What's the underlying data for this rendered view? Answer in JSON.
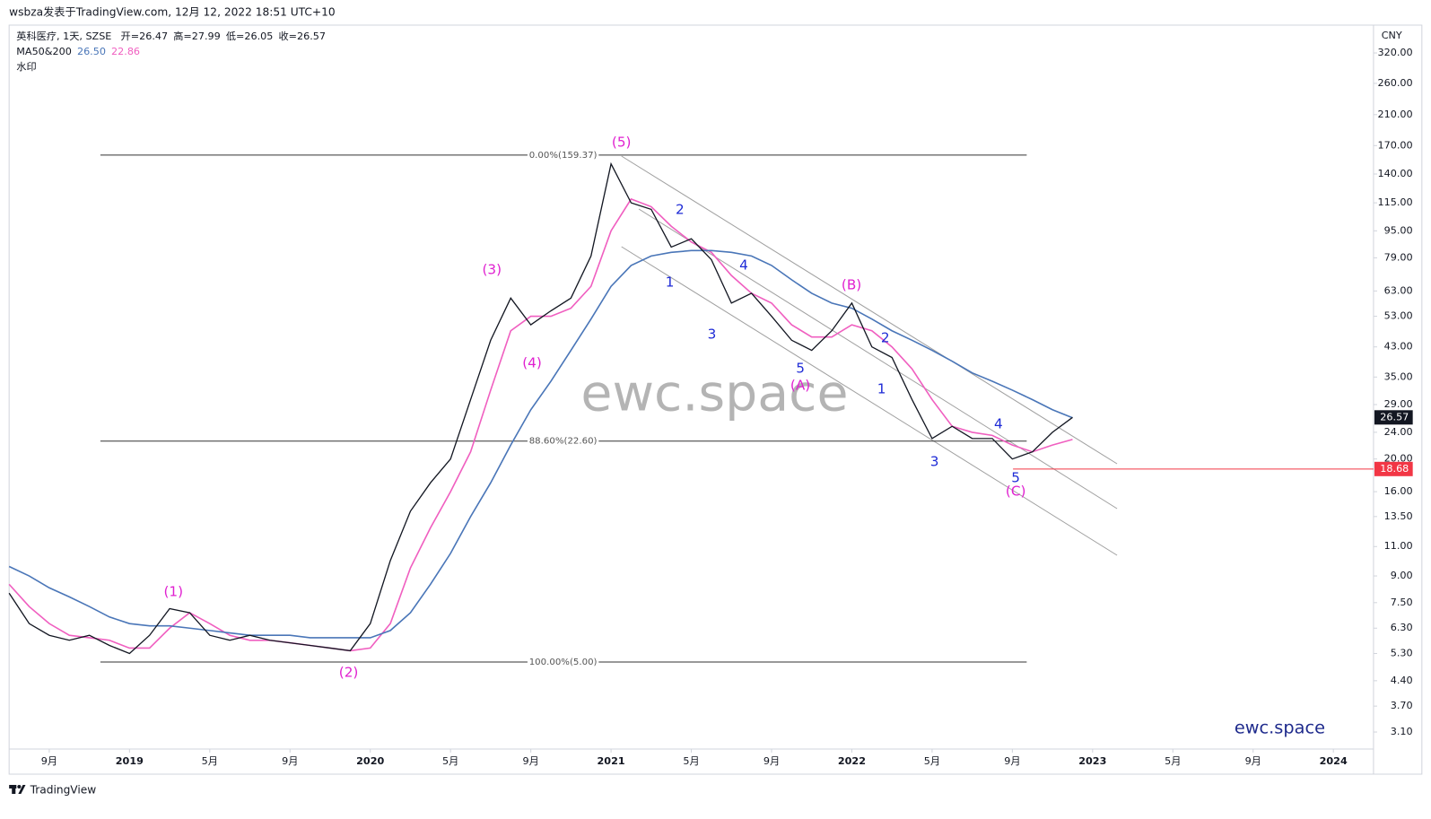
{
  "header": {
    "byline": "wsbza发表于TradingView.com, 12月 12, 2022 18:51 UTC+10",
    "symbol": "英科医疗, 1天, SZSE",
    "ohlc": [
      {
        "label": "开=",
        "value": 26.47
      },
      {
        "label": "高=",
        "value": 27.99
      },
      {
        "label": "低=",
        "value": 26.05
      },
      {
        "label": "收=",
        "value": 26.57
      }
    ],
    "indicator": "MA50&200",
    "indicator_values": [
      {
        "value": 26.5,
        "label": "26.50"
      },
      {
        "value": 22.86,
        "label": "22.86"
      }
    ],
    "watermark_label": "水印"
  },
  "footer": {
    "brand": "TradingView"
  },
  "chart_data": {
    "type": "line",
    "currency": "CNY",
    "log_scale": true,
    "watermark": "ewc.space",
    "signature": "ewc.space",
    "x": [
      "2018-07",
      "2018-08",
      "2018-09",
      "2018-10",
      "2018-11",
      "2018-12",
      "2019-01",
      "2019-02",
      "2019-03",
      "2019-04",
      "2019-05",
      "2019-06",
      "2019-07",
      "2019-08",
      "2019-09",
      "2019-10",
      "2019-11",
      "2019-12",
      "2020-01",
      "2020-02",
      "2020-03",
      "2020-04",
      "2020-05",
      "2020-06",
      "2020-07",
      "2020-08",
      "2020-09",
      "2020-10",
      "2020-11",
      "2020-12",
      "2021-01",
      "2021-02",
      "2021-03",
      "2021-04",
      "2021-05",
      "2021-06",
      "2021-07",
      "2021-08",
      "2021-09",
      "2021-10",
      "2021-11",
      "2021-12",
      "2022-01",
      "2022-02",
      "2022-03",
      "2022-04",
      "2022-05",
      "2022-06",
      "2022-07",
      "2022-08",
      "2022-09",
      "2022-10",
      "2022-11",
      "2022-12"
    ],
    "series": [
      {
        "color": "#131722",
        "values": [
          8.0,
          6.5,
          6.0,
          5.8,
          6.0,
          5.6,
          5.3,
          6.0,
          7.2,
          7.0,
          6.0,
          5.8,
          6.0,
          5.8,
          5.7,
          5.6,
          5.5,
          5.4,
          6.5,
          10.0,
          14.0,
          17.0,
          20.0,
          30.0,
          45.0,
          60.0,
          50.0,
          55.0,
          60.0,
          80.0,
          150.0,
          115.0,
          110.0,
          85.0,
          90.0,
          78.0,
          58.0,
          62.0,
          53.0,
          45.0,
          42.0,
          48.0,
          58.0,
          43.0,
          40.0,
          30.0,
          23.0,
          25.0,
          23.0,
          23.0,
          20.0,
          21.0,
          24.0,
          26.57
        ]
      },
      {
        "color": "#4a76b8",
        "values": [
          9.6,
          9.0,
          8.3,
          7.8,
          7.3,
          6.8,
          6.5,
          6.4,
          6.4,
          6.3,
          6.2,
          6.1,
          6.0,
          6.0,
          6.0,
          5.9,
          5.9,
          5.9,
          5.9,
          6.2,
          7.0,
          8.5,
          10.5,
          13.5,
          17,
          22,
          28,
          34,
          42,
          52,
          65,
          75,
          80,
          82,
          83,
          83,
          82,
          80,
          75,
          68,
          62,
          58,
          56,
          52,
          48,
          45,
          42,
          39,
          36,
          34,
          32,
          30,
          28,
          26.5
        ]
      },
      {
        "color": "#f05fc0",
        "values": [
          8.5,
          7.3,
          6.5,
          6.0,
          5.9,
          5.8,
          5.5,
          5.5,
          6.3,
          7.0,
          6.5,
          6.0,
          5.8,
          5.8,
          5.7,
          5.6,
          5.5,
          5.4,
          5.5,
          6.5,
          9.5,
          12.5,
          16,
          21,
          32,
          48,
          53,
          53,
          56,
          65,
          95,
          118,
          112,
          98,
          88,
          82,
          70,
          62,
          58,
          50,
          46,
          46,
          50,
          48,
          43,
          37,
          30,
          25,
          24,
          23.5,
          22,
          21,
          22,
          22.86
        ]
      }
    ],
    "xlim": [
      "2018-07",
      "2024-03"
    ],
    "xticks": [
      {
        "value": "2018-09",
        "label": "9月"
      },
      {
        "value": "2019-01",
        "label": "2019"
      },
      {
        "value": "2019-05",
        "label": "5月"
      },
      {
        "value": "2019-09",
        "label": "9月"
      },
      {
        "value": "2020-01",
        "label": "2020"
      },
      {
        "value": "2020-05",
        "label": "5月"
      },
      {
        "value": "2020-09",
        "label": "9月"
      },
      {
        "value": "2021-01",
        "label": "2021"
      },
      {
        "value": "2021-05",
        "label": "5月"
      },
      {
        "value": "2021-09",
        "label": "9月"
      },
      {
        "value": "2022-01",
        "label": "2022"
      },
      {
        "value": "2022-05",
        "label": "5月"
      },
      {
        "value": "2022-09",
        "label": "9月"
      },
      {
        "value": "2023-01",
        "label": "2023"
      },
      {
        "value": "2023-05",
        "label": "5月"
      },
      {
        "value": "2023-09",
        "label": "9月"
      },
      {
        "value": "2024-01",
        "label": "2024"
      }
    ],
    "ylim": [
      2.76,
      387
    ],
    "yticks": [
      {
        "value": 320,
        "label": "320.00"
      },
      {
        "value": 260,
        "label": "260.00"
      },
      {
        "value": 210,
        "label": "210.00"
      },
      {
        "value": 170,
        "label": "170.00"
      },
      {
        "value": 140,
        "label": "140.00"
      },
      {
        "value": 115,
        "label": "115.00"
      },
      {
        "value": 95,
        "label": "95.00"
      },
      {
        "value": 79,
        "label": "79.00"
      },
      {
        "value": 63,
        "label": "63.00"
      },
      {
        "value": 53,
        "label": "53.00"
      },
      {
        "value": 43,
        "label": "43.00"
      },
      {
        "value": 35,
        "label": "35.00"
      },
      {
        "value": 29,
        "label": "29.00"
      },
      {
        "value": 24,
        "label": "24.00"
      },
      {
        "value": 20,
        "label": "20.00"
      },
      {
        "value": 16,
        "label": "16.00"
      },
      {
        "value": 13.5,
        "label": "13.50"
      },
      {
        "value": 11,
        "label": "11.00"
      },
      {
        "value": 9,
        "label": "9.00"
      },
      {
        "value": 7.5,
        "label": "7.50"
      },
      {
        "value": 6.3,
        "label": "6.30"
      },
      {
        "value": 5.3,
        "label": "5.30"
      },
      {
        "value": 4.4,
        "label": "4.40"
      },
      {
        "value": 3.7,
        "label": "3.70"
      },
      {
        "value": 3.1,
        "label": "3.10"
      }
    ],
    "fib_levels": [
      {
        "value": 159.37,
        "label": "0.00%(159.37)"
      },
      {
        "value": 22.6,
        "label": "88.60%(22.60)"
      },
      {
        "value": 5.0,
        "label": "100.00%(5.00)"
      }
    ],
    "last_price": 26.57,
    "last_price_color": "#131722",
    "price_line": 18.68,
    "price_line_color": "#f23645",
    "annotation_colors": {
      "major": "#e020d0",
      "minor": "#1e2bd6"
    },
    "annotations": [
      "(5)",
      "(3)",
      "(4)",
      "(1)",
      "(2)",
      "(A)",
      "(B)",
      "(C)",
      "2",
      "1",
      "4",
      "3",
      "5",
      "2",
      "1",
      "3",
      "4",
      "5"
    ]
  }
}
